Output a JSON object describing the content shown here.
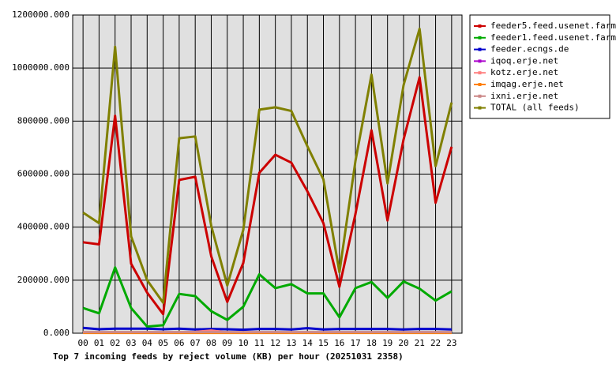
{
  "chart_data": {
    "type": "line",
    "title": "Top 7 incoming feeds by reject volume (KB) per hour (20251031 2358)",
    "categories": [
      "00",
      "01",
      "02",
      "03",
      "04",
      "05",
      "06",
      "07",
      "08",
      "09",
      "10",
      "11",
      "12",
      "13",
      "14",
      "15",
      "16",
      "17",
      "18",
      "19",
      "20",
      "21",
      "22",
      "23"
    ],
    "ylim": [
      0,
      1200000
    ],
    "yticks": [
      {
        "value": 0,
        "label": "0.000"
      },
      {
        "value": 200000,
        "label": "200000.000"
      },
      {
        "value": 400000,
        "label": "400000.000"
      },
      {
        "value": 600000,
        "label": "600000.000"
      },
      {
        "value": 800000,
        "label": "800000.000"
      },
      {
        "value": 1000000,
        "label": "1000000.000"
      },
      {
        "value": 1200000,
        "label": "1200000.000"
      }
    ],
    "grid": true,
    "legend_position": "right",
    "series": [
      {
        "name": "feeder5.feed.usenet.farm",
        "color": "#cc0000",
        "values": [
          343000,
          335000,
          820000,
          262000,
          153000,
          72000,
          578000,
          590000,
          290000,
          118000,
          265000,
          605000,
          673000,
          643000,
          535000,
          415000,
          175000,
          450000,
          765000,
          425000,
          730000,
          965000,
          492000,
          703000
        ]
      },
      {
        "name": "feeder1.feed.usenet.farm",
        "color": "#00aa00",
        "values": [
          95000,
          75000,
          248000,
          95000,
          25000,
          30000,
          148000,
          140000,
          83000,
          50000,
          100000,
          222000,
          170000,
          185000,
          150000,
          150000,
          60000,
          170000,
          193000,
          133000,
          195000,
          168000,
          123000,
          158000
        ]
      },
      {
        "name": "feeder.ecngs.de",
        "color": "#0000cc",
        "values": [
          20000,
          15000,
          17000,
          17000,
          17000,
          15000,
          17000,
          14000,
          16000,
          15000,
          13000,
          16000,
          16000,
          14000,
          19000,
          14000,
          16000,
          16000,
          16000,
          16000,
          14000,
          16000,
          16000,
          14000
        ]
      },
      {
        "name": "iqoq.erje.net",
        "color": "#aa00cc",
        "values": [
          2000,
          2000,
          2000,
          2000,
          2000,
          2000,
          2000,
          2000,
          2000,
          2000,
          2000,
          2000,
          2000,
          2000,
          2000,
          2000,
          2000,
          2000,
          2000,
          2000,
          2000,
          2000,
          2000,
          2000
        ]
      },
      {
        "name": "kotz.erje.net",
        "color": "#ff8080",
        "values": [
          3000,
          3000,
          3000,
          3000,
          3000,
          3000,
          3000,
          5000,
          10000,
          3000,
          3000,
          3000,
          3000,
          3000,
          3000,
          3000,
          3000,
          3000,
          3000,
          3000,
          3000,
          3000,
          3000,
          3000
        ]
      },
      {
        "name": "imqag.erje.net",
        "color": "#ff8000",
        "values": [
          1000,
          1000,
          1000,
          1000,
          1000,
          1000,
          1000,
          1000,
          1000,
          1000,
          1000,
          1000,
          1000,
          1000,
          1000,
          1000,
          1000,
          1000,
          1000,
          1000,
          1000,
          1000,
          1000,
          1000
        ]
      },
      {
        "name": "ixni.erje.net",
        "color": "#cc8888",
        "values": [
          4000,
          4000,
          4000,
          4000,
          4000,
          4000,
          4000,
          4000,
          4000,
          4000,
          4000,
          4000,
          4000,
          4000,
          4000,
          4000,
          4000,
          4000,
          4000,
          4000,
          4000,
          4000,
          4000,
          4000
        ]
      },
      {
        "name": "TOTAL (all feeds)",
        "color": "#808000",
        "values": [
          455000,
          415000,
          1080000,
          365000,
          200000,
          115000,
          735000,
          742000,
          405000,
          180000,
          390000,
          843000,
          852000,
          838000,
          705000,
          580000,
          230000,
          650000,
          975000,
          565000,
          935000,
          1148000,
          630000,
          870000
        ]
      }
    ]
  }
}
